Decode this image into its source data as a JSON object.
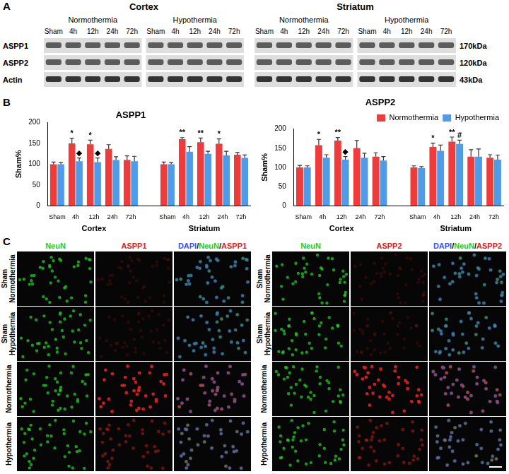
{
  "panel_a": {
    "label": "A",
    "lanes": [
      "Sham",
      "4h",
      "12h",
      "24h",
      "72h"
    ],
    "regions": [
      {
        "name": "Cortex",
        "conditions": [
          "Normothermia",
          "Hypothermia"
        ]
      },
      {
        "name": "Striatum",
        "conditions": [
          "Normothermia",
          "Hypothermia"
        ]
      }
    ],
    "rows": [
      {
        "name": "ASPP1",
        "size": "170kDa"
      },
      {
        "name": "ASPP2",
        "size": "120kDa"
      },
      {
        "name": "Actin",
        "size": "43kDa"
      }
    ]
  },
  "panel_b": {
    "label": "B"
  },
  "chart_data": [
    {
      "type": "bar",
      "title": "ASPP1",
      "ylabel": "Sham%",
      "categories": [
        "Sham",
        "4h",
        "12h",
        "24h",
        "72h",
        null,
        "Sham",
        "4h",
        "12h",
        "24h",
        "72h"
      ],
      "group_labels": [
        "Cortex",
        "Striatum"
      ],
      "ylim": [
        0,
        200
      ],
      "yticks": [
        0,
        50,
        100,
        150,
        200
      ],
      "grid": false,
      "series": [
        {
          "name": "Normothermia",
          "color": "#ee3b3b",
          "values": [
            100,
            150,
            148,
            137,
            110,
            null,
            100,
            160,
            153,
            149,
            123
          ],
          "errors": [
            5,
            12,
            10,
            10,
            10,
            null,
            5,
            4,
            10,
            12,
            5
          ],
          "significance": [
            null,
            "*",
            "*",
            null,
            null,
            null,
            null,
            "**",
            "**",
            "*",
            null
          ]
        },
        {
          "name": "Hypothermia",
          "color": "#4f9be8",
          "values": [
            100,
            107,
            105,
            110,
            107,
            null,
            100,
            130,
            125,
            121,
            115
          ],
          "errors": [
            4,
            8,
            10,
            8,
            12,
            null,
            4,
            12,
            6,
            10,
            7
          ],
          "significance": [
            null,
            "◆",
            "◆",
            null,
            null,
            null,
            null,
            null,
            null,
            null,
            null
          ]
        }
      ]
    },
    {
      "type": "bar",
      "title": "ASPP2",
      "ylabel": "Sham%",
      "categories": [
        "Sham",
        "4h",
        "12h",
        "24h",
        "72h",
        null,
        "Sham",
        "4h",
        "12h",
        "24h",
        "72h"
      ],
      "group_labels": [
        "Cortex",
        "Striatum"
      ],
      "ylim": [
        0,
        200
      ],
      "yticks": [
        0,
        50,
        100,
        150,
        200
      ],
      "grid": false,
      "legend": "upper right",
      "series": [
        {
          "name": "Normothermia",
          "color": "#ee3b3b",
          "values": [
            100,
            158,
            170,
            150,
            128,
            null,
            100,
            153,
            167,
            128,
            125
          ],
          "errors": [
            5,
            15,
            8,
            20,
            10,
            null,
            4,
            10,
            12,
            18,
            8
          ],
          "significance": [
            null,
            "*",
            "**",
            null,
            null,
            null,
            null,
            "*",
            "**",
            null,
            null
          ]
        },
        {
          "name": "Hypothermia",
          "color": "#4f9be8",
          "values": [
            100,
            125,
            120,
            125,
            118,
            null,
            98,
            143,
            161,
            128,
            120
          ],
          "errors": [
            4,
            8,
            8,
            12,
            10,
            null,
            4,
            15,
            10,
            20,
            12
          ],
          "significance": [
            null,
            null,
            "◆",
            null,
            null,
            null,
            null,
            null,
            "#",
            null,
            null
          ]
        }
      ]
    }
  ],
  "panel_c": {
    "label": "C",
    "row_labels": [
      "Sham Normothermia",
      "Sham Hypothermia",
      "Normothermia",
      "Hypothermia"
    ],
    "grids": [
      {
        "columns": [
          "NeuN",
          "ASPP1",
          "DAPI/NeuN/ASPP1"
        ]
      },
      {
        "columns": [
          "NeuN",
          "ASPP2",
          "DAPI/NeuN/ASPP2"
        ]
      }
    ]
  }
}
